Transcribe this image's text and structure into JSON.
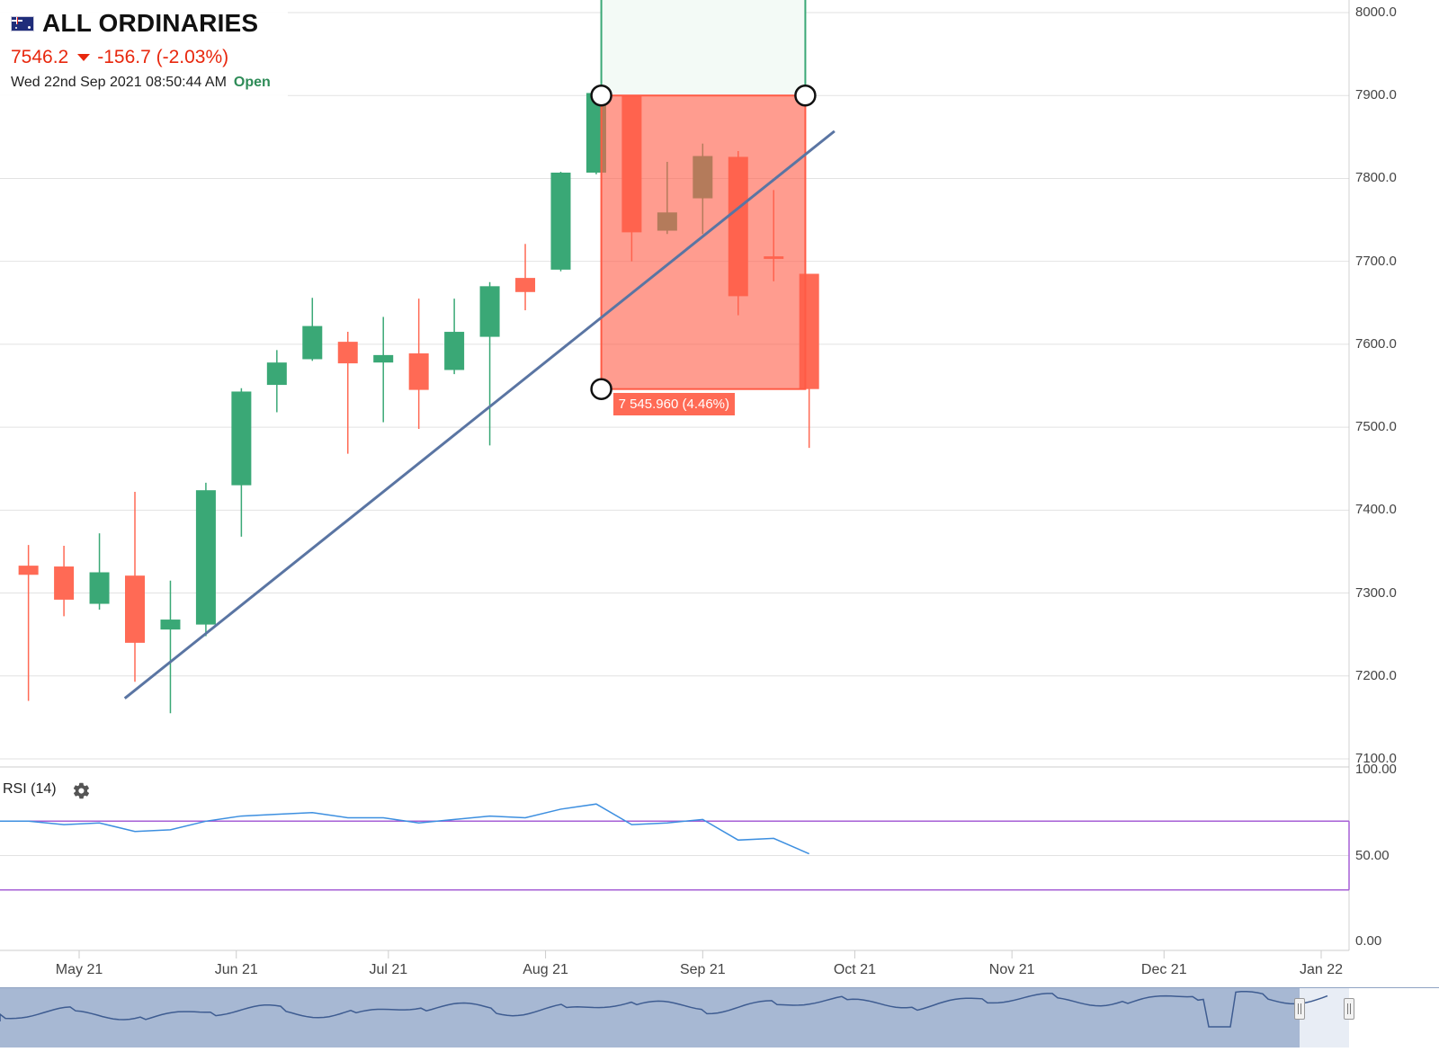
{
  "header": {
    "title": "ALL ORDINARIES",
    "price": "7546.2",
    "change": "-156.7 (-2.03%)",
    "datetime": "Wed 22nd Sep 2021 08:50:44 AM",
    "status": "Open",
    "flag_icon": "australia-flag-icon",
    "direction_icon": "triangle-down-icon"
  },
  "colors": {
    "up": "#3aa876",
    "down": "#ff6a55",
    "trendline": "#5a75a3",
    "rsi_line": "#3d8fe0",
    "rsi_band": "#a65fd6",
    "status_open": "#2e8b57"
  },
  "price_axis": [
    "8000.0",
    "7900.0",
    "7800.0",
    "7700.0",
    "7600.0",
    "7500.0",
    "7400.0",
    "7300.0",
    "7200.0",
    "7100.0"
  ],
  "rsi_axis": [
    "100.00",
    "50.00",
    "0.00"
  ],
  "time_axis": [
    "May 21",
    "Jun 21",
    "Jul 21",
    "Aug 21",
    "Sep 21",
    "Oct 21",
    "Nov 21",
    "Dec 21",
    "Jan 22"
  ],
  "rsi_panel": {
    "label": "RSI (14)",
    "settings_icon": "gear-icon"
  },
  "trade_box": {
    "label": "7 545.960 (4.46%)"
  },
  "chart_data": {
    "type": "candlestick",
    "title": "ALL ORDINARIES",
    "interval": "weekly",
    "x_range": [
      "2021-04-18",
      "2022-01-05"
    ],
    "ylim": [
      7100,
      8000
    ],
    "candles": [
      {
        "date": "2021-04-19",
        "open": 7333,
        "high": 7358,
        "low": 7170,
        "close": 7322
      },
      {
        "date": "2021-04-26",
        "open": 7332,
        "high": 7357,
        "low": 7272,
        "close": 7292
      },
      {
        "date": "2021-05-03",
        "open": 7287,
        "high": 7372,
        "low": 7280,
        "close": 7325
      },
      {
        "date": "2021-05-10",
        "open": 7321,
        "high": 7422,
        "low": 7193,
        "close": 7240
      },
      {
        "date": "2021-05-17",
        "open": 7256,
        "high": 7315,
        "low": 7155,
        "close": 7268
      },
      {
        "date": "2021-05-24",
        "open": 7262,
        "high": 7433,
        "low": 7248,
        "close": 7424
      },
      {
        "date": "2021-05-31",
        "open": 7430,
        "high": 7547,
        "low": 7368,
        "close": 7543
      },
      {
        "date": "2021-06-07",
        "open": 7551,
        "high": 7593,
        "low": 7518,
        "close": 7578
      },
      {
        "date": "2021-06-14",
        "open": 7582,
        "high": 7656,
        "low": 7580,
        "close": 7622
      },
      {
        "date": "2021-06-21",
        "open": 7603,
        "high": 7615,
        "low": 7468,
        "close": 7577
      },
      {
        "date": "2021-06-28",
        "open": 7578,
        "high": 7633,
        "low": 7506,
        "close": 7587
      },
      {
        "date": "2021-07-05",
        "open": 7589,
        "high": 7655,
        "low": 7498,
        "close": 7545
      },
      {
        "date": "2021-07-12",
        "open": 7569,
        "high": 7655,
        "low": 7564,
        "close": 7615
      },
      {
        "date": "2021-07-19",
        "open": 7609,
        "high": 7675,
        "low": 7478,
        "close": 7670
      },
      {
        "date": "2021-07-26",
        "open": 7680,
        "high": 7721,
        "low": 7641,
        "close": 7663
      },
      {
        "date": "2021-08-02",
        "open": 7690,
        "high": 7808,
        "low": 7688,
        "close": 7807
      },
      {
        "date": "2021-08-09",
        "open": 7807,
        "high": 7904,
        "low": 7805,
        "close": 7903
      },
      {
        "date": "2021-08-16",
        "open": 7900,
        "high": 7900,
        "low": 7700,
        "close": 7735
      },
      {
        "date": "2021-08-23",
        "open": 7737,
        "high": 7820,
        "low": 7733,
        "close": 7759
      },
      {
        "date": "2021-08-30",
        "open": 7776,
        "high": 7842,
        "low": 7733,
        "close": 7827
      },
      {
        "date": "2021-09-06",
        "open": 7826,
        "high": 7833,
        "low": 7635,
        "close": 7658
      },
      {
        "date": "2021-09-13",
        "open": 7706,
        "high": 7786,
        "low": 7676,
        "close": 7703
      },
      {
        "date": "2021-09-20",
        "open": 7685,
        "high": 7685,
        "low": 7475,
        "close": 7546
      }
    ],
    "trendline": [
      {
        "date": "2021-05-10",
        "value": 7173
      },
      {
        "date": "2021-09-27",
        "value": 7857
      }
    ],
    "trade_box": {
      "start": "2021-08-12",
      "end": "2021-09-20",
      "entry": 7900,
      "target": 8000,
      "stop": 7546,
      "label": "7 545.960 (4.46%)"
    },
    "rsi": {
      "name": "RSI (14)",
      "ylim": [
        0,
        100
      ],
      "bands": [
        70,
        30
      ],
      "values": [
        {
          "date": "2021-04-19",
          "value": 70
        },
        {
          "date": "2021-04-26",
          "value": 68
        },
        {
          "date": "2021-05-03",
          "value": 69
        },
        {
          "date": "2021-05-10",
          "value": 64
        },
        {
          "date": "2021-05-17",
          "value": 65
        },
        {
          "date": "2021-05-24",
          "value": 70
        },
        {
          "date": "2021-05-31",
          "value": 73
        },
        {
          "date": "2021-06-07",
          "value": 74
        },
        {
          "date": "2021-06-14",
          "value": 75
        },
        {
          "date": "2021-06-21",
          "value": 72
        },
        {
          "date": "2021-06-28",
          "value": 72
        },
        {
          "date": "2021-07-05",
          "value": 69
        },
        {
          "date": "2021-07-12",
          "value": 71
        },
        {
          "date": "2021-07-19",
          "value": 73
        },
        {
          "date": "2021-07-26",
          "value": 72
        },
        {
          "date": "2021-08-02",
          "value": 77
        },
        {
          "date": "2021-08-09",
          "value": 80
        },
        {
          "date": "2021-08-16",
          "value": 68
        },
        {
          "date": "2021-08-23",
          "value": 69
        },
        {
          "date": "2021-08-30",
          "value": 71
        },
        {
          "date": "2021-09-06",
          "value": 59
        },
        {
          "date": "2021-09-13",
          "value": 60
        },
        {
          "date": "2021-09-20",
          "value": 51
        }
      ]
    },
    "grid": true
  }
}
